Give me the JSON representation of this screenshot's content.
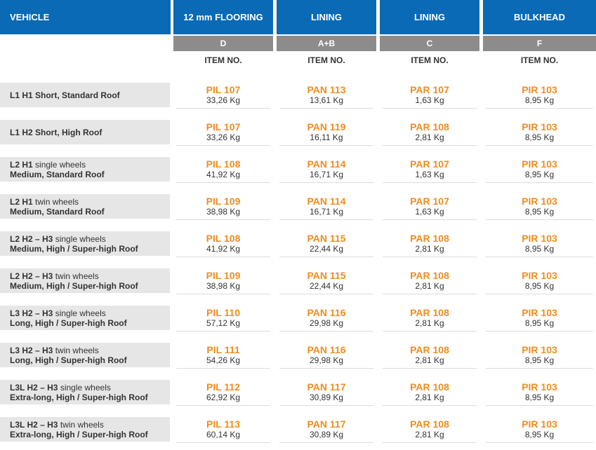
{
  "header": {
    "vehicle": "VEHICLE",
    "columns": [
      {
        "title": "12 mm FLOORING",
        "code": "D"
      },
      {
        "title": "LINING",
        "code": "A+B"
      },
      {
        "title": "LINING",
        "code": "C"
      },
      {
        "title": "BULKHEAD",
        "code": "F"
      }
    ],
    "item_no": "ITEM NO."
  },
  "colors": {
    "header_bg": "#0a6ab5",
    "subheader_bg": "#8c8c8c",
    "code_text": "#f08c1e",
    "row_label_bg": "#e6e6e6"
  },
  "rows": [
    {
      "line1": "L1 H1 Short, Standard Roof",
      "line1_tail": "",
      "line2": "",
      "cells": [
        {
          "code": "PIL 107",
          "kg": "33,26 Kg"
        },
        {
          "code": "PAN 113",
          "kg": "13,61 Kg"
        },
        {
          "code": "PAR 107",
          "kg": "1,63 Kg"
        },
        {
          "code": "PIR 103",
          "kg": "8,95 Kg"
        }
      ]
    },
    {
      "line1": "L1 H2 Short, High Roof",
      "line1_tail": "",
      "line2": "",
      "cells": [
        {
          "code": "PIL 107",
          "kg": "33,26 Kg"
        },
        {
          "code": "PAN 119",
          "kg": "16,11 Kg"
        },
        {
          "code": "PAR 108",
          "kg": "2,81 Kg"
        },
        {
          "code": "PIR 103",
          "kg": "8,95 Kg"
        }
      ]
    },
    {
      "line1": "L2 H1",
      "line1_tail": " single wheels",
      "line2": "Medium, Standard Roof",
      "cells": [
        {
          "code": "PIL 108",
          "kg": "41,92 Kg"
        },
        {
          "code": "PAN 114",
          "kg": "16,71 Kg"
        },
        {
          "code": "PAR 107",
          "kg": "1,63 Kg"
        },
        {
          "code": "PIR 103",
          "kg": "8,95 Kg"
        }
      ]
    },
    {
      "line1": "L2 H1",
      "line1_tail": " twin wheels",
      "line2": "Medium, Standard Roof",
      "cells": [
        {
          "code": "PIL 109",
          "kg": "38,98 Kg"
        },
        {
          "code": "PAN 114",
          "kg": "16,71 Kg"
        },
        {
          "code": "PAR 107",
          "kg": "1,63 Kg"
        },
        {
          "code": "PIR 103",
          "kg": "8,95 Kg"
        }
      ]
    },
    {
      "line1": "L2 H2 – H3",
      "line1_tail": " single wheels",
      "line2": "Medium, High / Super-high Roof",
      "cells": [
        {
          "code": "PIL 108",
          "kg": "41,92 Kg"
        },
        {
          "code": "PAN 115",
          "kg": "22,44 Kg"
        },
        {
          "code": "PAR 108",
          "kg": "2,81 Kg"
        },
        {
          "code": "PIR 103",
          "kg": "8,95 Kg"
        }
      ]
    },
    {
      "line1": "L2 H2 – H3",
      "line1_tail": " twin wheels",
      "line2": "Medium, High / Super-high Roof",
      "cells": [
        {
          "code": "PIL 109",
          "kg": "38,98 Kg"
        },
        {
          "code": "PAN 115",
          "kg": "22,44 Kg"
        },
        {
          "code": "PAR 108",
          "kg": "2,81 Kg"
        },
        {
          "code": "PIR 103",
          "kg": "8,95 Kg"
        }
      ]
    },
    {
      "line1": "L3 H2 – H3",
      "line1_tail": " single wheels",
      "line2": "Long, High / Super-high Roof",
      "cells": [
        {
          "code": "PIL 110",
          "kg": "57,12 Kg"
        },
        {
          "code": "PAN 116",
          "kg": "29,98 Kg"
        },
        {
          "code": "PAR 108",
          "kg": "2,81 Kg"
        },
        {
          "code": "PIR 103",
          "kg": "8,95 Kg"
        }
      ]
    },
    {
      "line1": "L3 H2 – H3",
      "line1_tail": " twin wheels",
      "line2": "Long, High / Super-high Roof",
      "cells": [
        {
          "code": "PIL 111",
          "kg": "54,26 Kg"
        },
        {
          "code": "PAN 116",
          "kg": "29,98 Kg"
        },
        {
          "code": "PAR 108",
          "kg": "2,81 Kg"
        },
        {
          "code": "PIR 103",
          "kg": "8,95 Kg"
        }
      ]
    },
    {
      "line1": "L3L H2 – H3",
      "line1_tail": " single wheels",
      "line2": "Extra-long, High / Super-high Roof",
      "cells": [
        {
          "code": "PIL 112",
          "kg": "62,92 Kg"
        },
        {
          "code": "PAN 117",
          "kg": "30,89 Kg"
        },
        {
          "code": "PAR 108",
          "kg": "2,81 Kg"
        },
        {
          "code": "PIR 103",
          "kg": "8,95 Kg"
        }
      ]
    },
    {
      "line1": "L3L H2 – H3",
      "line1_tail": " twin wheels",
      "line2": "Extra-long, High / Super-high Roof",
      "cells": [
        {
          "code": "PIL 113",
          "kg": "60,14 Kg"
        },
        {
          "code": "PAN 117",
          "kg": "30,89 Kg"
        },
        {
          "code": "PAR 108",
          "kg": "2,81 Kg"
        },
        {
          "code": "PIR 103",
          "kg": "8,95 Kg"
        }
      ]
    }
  ]
}
